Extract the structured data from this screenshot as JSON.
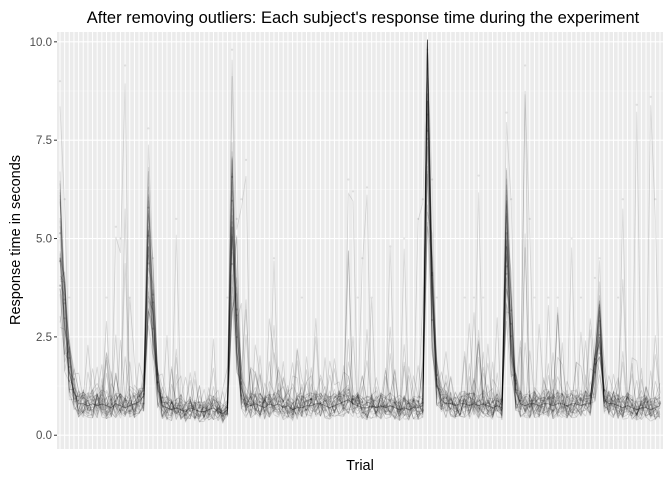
{
  "chart_data": {
    "type": "line",
    "title": "After removing outliers: Each subject's response time during the experiment",
    "xlabel": "Trial",
    "ylabel": "Response time in seconds",
    "ylim": [
      -0.35,
      10.25
    ],
    "y_ticks": [
      0.0,
      2.5,
      5.0,
      7.5,
      10.0
    ],
    "y_tick_labels": [
      "0.0",
      "2.5",
      "5.0",
      "7.5",
      "10.0"
    ],
    "x_tick_labels": "none",
    "n_trials": 130,
    "grid": true,
    "legend": "none",
    "median_response_time": [
      4.5,
      2.8,
      1.6,
      1.1,
      0.8,
      0.8,
      0.75,
      0.8,
      0.75,
      0.8,
      0.75,
      0.7,
      0.8,
      0.75,
      0.7,
      0.75,
      0.8,
      0.85,
      1.0,
      4.8,
      3.0,
      1.2,
      0.75,
      0.7,
      0.65,
      0.7,
      0.65,
      0.6,
      0.7,
      0.65,
      0.6,
      0.6,
      0.65,
      0.7,
      0.6,
      0.55,
      0.65,
      5.3,
      2.8,
      1.2,
      0.8,
      0.75,
      0.8,
      0.75,
      0.7,
      0.8,
      0.75,
      0.8,
      0.7,
      0.75,
      0.65,
      0.7,
      0.7,
      0.75,
      0.75,
      0.8,
      0.8,
      0.75,
      0.7,
      0.75,
      0.8,
      0.85,
      0.9,
      0.8,
      0.75,
      0.7,
      0.7,
      0.75,
      0.7,
      0.75,
      0.7,
      0.75,
      0.7,
      0.65,
      0.7,
      0.65,
      0.7,
      0.7,
      0.75,
      8.5,
      3.5,
      1.3,
      0.9,
      0.8,
      0.8,
      0.75,
      0.8,
      0.8,
      0.75,
      0.8,
      0.75,
      0.8,
      0.75,
      0.7,
      0.75,
      0.7,
      4.8,
      2.5,
      1.1,
      0.8,
      0.75,
      0.8,
      0.8,
      0.75,
      0.8,
      0.8,
      0.75,
      0.8,
      0.8,
      0.75,
      0.8,
      0.8,
      0.75,
      0.8,
      0.8,
      1.5,
      2.5,
      0.9,
      0.8,
      0.8,
      0.75,
      0.7,
      0.75,
      0.7,
      0.65,
      0.7,
      0.7,
      0.65,
      0.7,
      0.75
    ],
    "upper_spread": [
      9.0,
      6.0,
      3.5,
      2.5,
      2.0,
      1.8,
      2.5,
      2.8,
      2.0,
      2.5,
      3.5,
      2.5,
      5.3,
      5.0,
      9.4,
      3.5,
      2.0,
      2.0,
      3.0,
      7.8,
      4.5,
      2.5,
      2.0,
      3.0,
      2.0,
      5.5,
      2.0,
      1.8,
      2.5,
      2.5,
      2.0,
      1.8,
      2.0,
      2.5,
      2.0,
      2.0,
      3.5,
      9.8,
      5.5,
      6.0,
      7.0,
      3.0,
      2.5,
      2.5,
      2.0,
      3.0,
      4.5,
      3.0,
      2.5,
      2.0,
      2.0,
      2.5,
      3.5,
      2.0,
      2.5,
      3.0,
      2.5,
      2.0,
      2.0,
      2.5,
      2.0,
      2.5,
      6.5,
      6.2,
      3.5,
      4.5,
      6.3,
      3.5,
      2.5,
      2.5,
      3.0,
      4.8,
      3.0,
      3.0,
      5.0,
      3.0,
      2.5,
      5.5,
      6.0,
      9.8,
      6.5,
      3.5,
      2.5,
      3.0,
      3.0,
      2.5,
      2.5,
      3.5,
      3.0,
      3.5,
      6.6,
      3.5,
      3.0,
      2.5,
      3.0,
      2.5,
      8.2,
      6.0,
      2.5,
      2.5,
      9.4,
      5.5,
      3.5,
      3.0,
      2.5,
      3.5,
      3.0,
      3.5,
      3.0,
      2.5,
      5.0,
      3.0,
      3.5,
      2.5,
      3.0,
      4.0,
      4.5,
      3.0,
      2.5,
      3.0,
      3.5,
      6.0,
      3.0,
      2.5,
      8.4,
      2.5,
      2.5,
      8.6,
      6.0,
      3.0
    ]
  }
}
